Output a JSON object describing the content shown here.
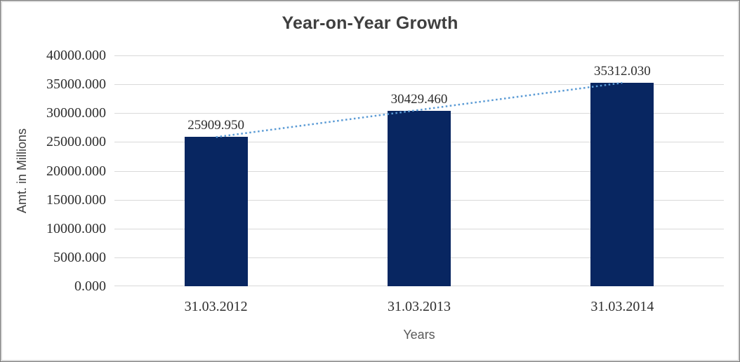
{
  "chart_data": {
    "type": "bar",
    "title": "Year-on-Year Growth",
    "xlabel": "Years",
    "ylabel": "Amt. in Millions",
    "categories": [
      "31.03.2012",
      "31.03.2013",
      "31.03.2014"
    ],
    "values": [
      25909.95,
      30429.46,
      35312.03
    ],
    "data_labels": [
      "25909.950",
      "30429.460",
      "35312.030"
    ],
    "ylim": [
      0,
      40000
    ],
    "ytick_step": 5000,
    "ytick_labels": [
      "0.000",
      "5000.000",
      "10000.000",
      "15000.000",
      "20000.000",
      "25000.000",
      "30000.000",
      "35000.000",
      "40000.000"
    ],
    "grid": true,
    "legend": "none",
    "trendline": {
      "type": "linear",
      "style": "dotted",
      "color": "#5b9bd5"
    },
    "colors": {
      "bar_fill": "#082661",
      "gridline": "#d9d9d9",
      "title_text": "#3f3f3f",
      "tick_text": "#2e2e2e",
      "y_axis_title_text": "#404040",
      "x_axis_title_text": "#595959",
      "frame_border": "#d9d9d9",
      "background": "#ffffff"
    }
  }
}
